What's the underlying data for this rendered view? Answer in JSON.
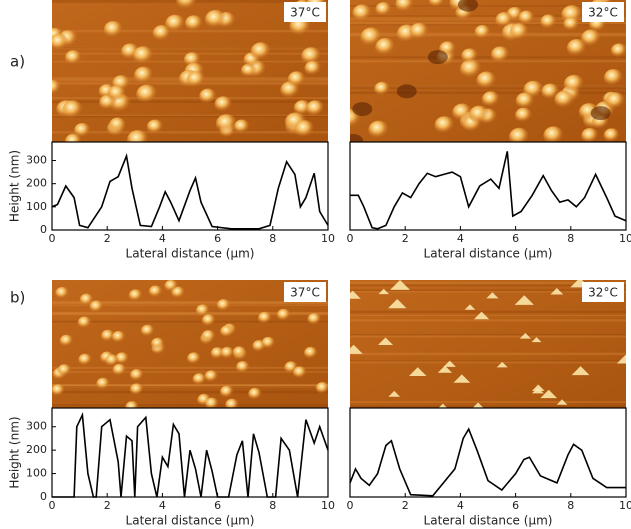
{
  "panel_labels": [
    "a)",
    "b)"
  ],
  "chart_data": [
    {
      "type": "line",
      "annotation": "37°C",
      "xlabel": "Lateral distance (µm)",
      "ylabel": "Height (nm)",
      "color": "#000000",
      "x": [
        0,
        0.2,
        0.5,
        0.8,
        1.0,
        1.3,
        1.8,
        2.1,
        2.4,
        2.7,
        2.9,
        3.2,
        3.6,
        3.9,
        4.1,
        4.3,
        4.6,
        5.0,
        5.2,
        5.4,
        5.8,
        6.5,
        7.5,
        7.9,
        8.2,
        8.5,
        8.8,
        9.0,
        9.2,
        9.5,
        9.7,
        10
      ],
      "values": [
        100,
        110,
        190,
        140,
        20,
        10,
        100,
        210,
        230,
        320,
        180,
        20,
        15,
        100,
        165,
        120,
        40,
        170,
        225,
        120,
        15,
        5,
        5,
        20,
        180,
        295,
        240,
        100,
        140,
        245,
        80,
        20
      ],
      "xlim": [
        0,
        10
      ],
      "xticks": [
        0,
        2,
        4,
        6,
        8,
        10
      ],
      "ylim": [
        0,
        380
      ],
      "yticks": [
        0,
        100,
        200,
        300
      ]
    },
    {
      "type": "line",
      "annotation": "32°C",
      "xlabel": "Lateral distance (µm)",
      "color": "#000000",
      "x": [
        0,
        0.3,
        0.5,
        0.8,
        1.0,
        1.3,
        1.6,
        1.9,
        2.2,
        2.5,
        2.8,
        3.1,
        3.4,
        3.7,
        4.0,
        4.3,
        4.7,
        5.1,
        5.4,
        5.7,
        5.9,
        6.2,
        6.6,
        7.0,
        7.3,
        7.6,
        7.9,
        8.2,
        8.5,
        8.9,
        9.3,
        9.6,
        10
      ],
      "values": [
        150,
        150,
        100,
        10,
        5,
        20,
        100,
        160,
        140,
        200,
        245,
        230,
        240,
        250,
        230,
        100,
        190,
        220,
        180,
        340,
        60,
        80,
        150,
        235,
        170,
        120,
        130,
        100,
        140,
        240,
        140,
        60,
        40
      ],
      "xlim": [
        0,
        10
      ],
      "xticks": [
        0,
        2,
        4,
        6,
        8,
        10
      ],
      "ylim": [
        0,
        380
      ]
    },
    {
      "type": "line",
      "annotation": "37°C",
      "xlabel": "Lateral distance (µm)",
      "ylabel": "Height (nm)",
      "color": "#000000",
      "x": [
        0,
        0.8,
        0.9,
        1.1,
        1.3,
        1.5,
        1.6,
        1.8,
        2.1,
        2.4,
        2.5,
        2.7,
        2.9,
        3.0,
        3.1,
        3.4,
        3.6,
        3.8,
        4.0,
        4.2,
        4.4,
        4.6,
        4.8,
        5.0,
        5.2,
        5.4,
        5.6,
        5.8,
        6.0,
        6.4,
        6.7,
        6.9,
        7.1,
        7.3,
        7.5,
        7.8,
        8.1,
        8.3,
        8.6,
        8.9,
        9.2,
        9.5,
        9.7,
        10
      ],
      "values": [
        0,
        0,
        300,
        350,
        100,
        0,
        0,
        300,
        330,
        150,
        0,
        260,
        240,
        0,
        300,
        340,
        100,
        0,
        170,
        130,
        310,
        270,
        0,
        200,
        120,
        0,
        200,
        110,
        0,
        0,
        180,
        240,
        0,
        270,
        190,
        0,
        0,
        250,
        200,
        0,
        330,
        230,
        300,
        200
      ],
      "xlim": [
        0,
        10
      ],
      "xticks": [
        0,
        2,
        4,
        6,
        8,
        10
      ],
      "ylim": [
        0,
        380
      ],
      "yticks": [
        0,
        100,
        200,
        300
      ]
    },
    {
      "type": "line",
      "annotation": "32°C",
      "xlabel": "Lateral distance (µm)",
      "color": "#000000",
      "x": [
        0,
        0.2,
        0.4,
        0.7,
        1.0,
        1.3,
        1.5,
        1.8,
        2.2,
        3.0,
        3.8,
        4.1,
        4.3,
        4.6,
        5.0,
        5.5,
        6.0,
        6.3,
        6.5,
        6.9,
        7.5,
        7.9,
        8.1,
        8.4,
        8.8,
        9.3,
        10
      ],
      "values": [
        60,
        120,
        80,
        50,
        100,
        220,
        240,
        120,
        10,
        5,
        120,
        250,
        290,
        200,
        70,
        30,
        100,
        160,
        170,
        90,
        60,
        180,
        225,
        200,
        80,
        40,
        40
      ],
      "xlim": [
        0,
        10
      ],
      "xticks": [
        0,
        2,
        4,
        6,
        8,
        10
      ],
      "ylim": [
        0,
        380
      ]
    }
  ]
}
